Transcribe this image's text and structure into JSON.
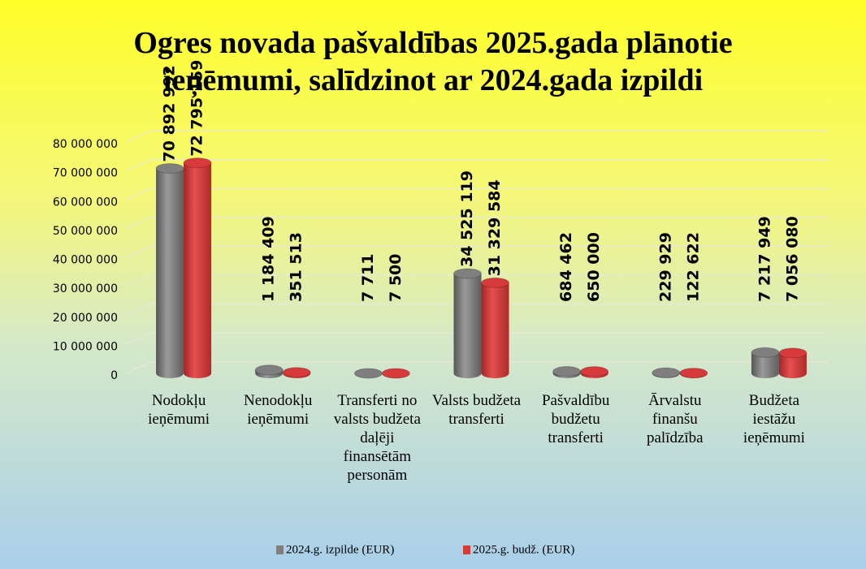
{
  "chart_data": {
    "type": "bar",
    "title": "Ogres novada pašvaldības 2025.gada plānotie ieņēmumi, salīdzinot ar 2024.gada izpildi",
    "categories": [
      "Nodokļu ieņēmumi",
      "Nenodokļu ieņēmumi",
      "Transferti no valsts budžeta daļēji finansētām personām",
      "Valsts budžeta transferti",
      "Pašvaldību budžetu transferti",
      "Ārvalstu finanšu palīdzība",
      "Budžeta iestāžu ieņēmumi"
    ],
    "series": [
      {
        "name": "2024.g. izpilde (EUR)",
        "color": "#7f7f7f",
        "values": [
          70892992,
          1184409,
          7711,
          34525119,
          684462,
          229929,
          7217949
        ],
        "value_labels": [
          "70 892 992",
          "1 184 409",
          "7 711",
          "34 525 119",
          "684 462",
          "229 929",
          "7 217 949"
        ]
      },
      {
        "name": "2025.g. budž. (EUR)",
        "color": "#d63a3a",
        "values": [
          72795159,
          351513,
          7500,
          31329584,
          650000,
          122622,
          7056080
        ],
        "value_labels": [
          "72 795 159",
          "351 513",
          "7 500",
          "31 329 584",
          "650 000",
          "122 622",
          "7 056 080"
        ]
      }
    ],
    "ylim": [
      0,
      80000000
    ],
    "yticks": [
      {
        "value": 0,
        "label": "0"
      },
      {
        "value": 10000000,
        "label": "10 000 000"
      },
      {
        "value": 20000000,
        "label": "20 000 000"
      },
      {
        "value": 30000000,
        "label": "30 000 000"
      },
      {
        "value": 40000000,
        "label": "40 000 000"
      },
      {
        "value": 50000000,
        "label": "50 000 000"
      },
      {
        "value": 60000000,
        "label": "60 000 000"
      },
      {
        "value": 70000000,
        "label": "70 000 000"
      },
      {
        "value": 80000000,
        "label": "80 000 000"
      }
    ],
    "grid": true,
    "legend": "bottom"
  }
}
